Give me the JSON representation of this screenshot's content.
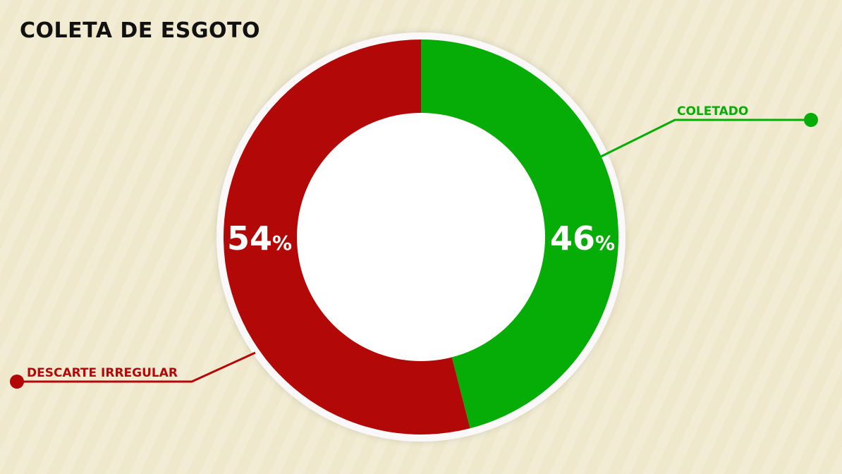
{
  "title": "COLETA DE ESGOTO",
  "chart_data": {
    "type": "pie",
    "variant": "donut",
    "slices": [
      {
        "label": "COLETADO",
        "value": 46,
        "display": "46",
        "unit": "%",
        "color": "#06ad06"
      },
      {
        "label": "DESCARTE IRREGULAR",
        "value": 54,
        "display": "54",
        "unit": "%",
        "color": "#b30808"
      }
    ],
    "legend": "callout-labels",
    "background": "#efe8cc"
  }
}
